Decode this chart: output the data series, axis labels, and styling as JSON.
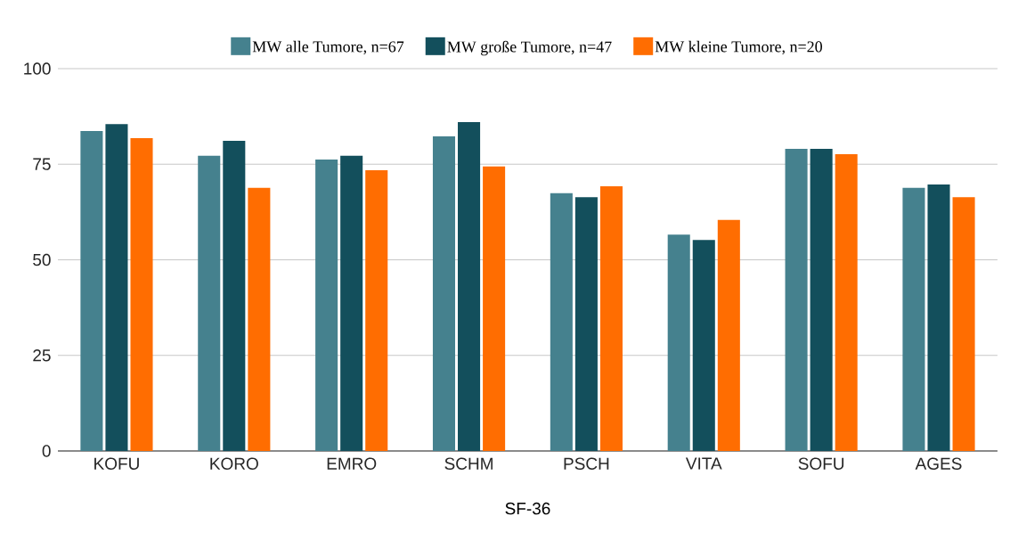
{
  "chart_data": {
    "type": "bar",
    "xlabel": "SF-36",
    "categories": [
      "KOFU",
      "KORO",
      "EMRO",
      "SCHM",
      "PSCH",
      "VITA",
      "SOFU",
      "AGES"
    ],
    "series": [
      {
        "name": "MW alle Tumore, n=67",
        "color": "#45818e",
        "values": [
          83.7,
          77.2,
          76.2,
          82.3,
          67.4,
          56.6,
          79.0,
          68.8
        ]
      },
      {
        "name": "MW große Tumore, n=47",
        "color": "#134f5c",
        "values": [
          85.5,
          81.1,
          77.2,
          86.0,
          66.4,
          55.2,
          79.0,
          69.7
        ]
      },
      {
        "name": "MW kleine Tumore, n=20",
        "color": "#ff6d01",
        "values": [
          81.8,
          68.8,
          73.4,
          74.4,
          69.2,
          60.4,
          77.6,
          66.4
        ]
      }
    ],
    "ylim": [
      0,
      100
    ],
    "yticks": [
      0,
      25,
      50,
      75,
      100
    ],
    "grid": "y",
    "legend": "top"
  }
}
